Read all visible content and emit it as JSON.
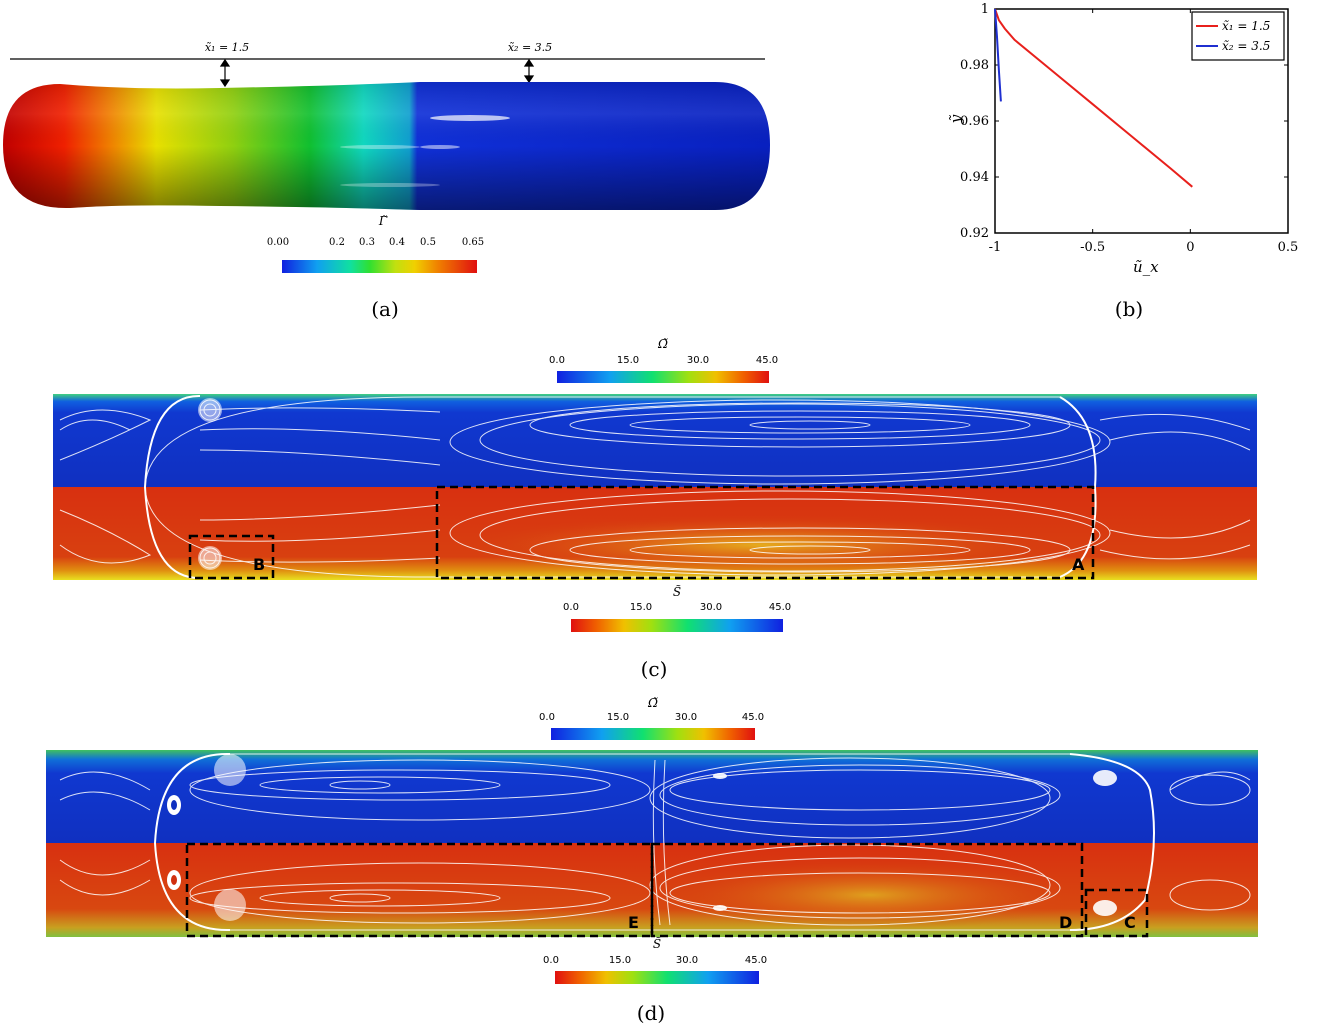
{
  "panel_a": {
    "caption": "(a)",
    "marker1_label": "x̃₁ = 1.5",
    "marker2_label": "x̃₂ = 3.5",
    "colorbar": {
      "title": "Γ̃",
      "ticks": [
        "0.00",
        "0.2",
        "0.3",
        "0.4",
        "0.5",
        "0.65"
      ]
    }
  },
  "panel_b": {
    "caption": "(b)",
    "xlabel": "ũ_x",
    "ylabel": "ỹ",
    "xticks": [
      "-1",
      "-0.5",
      "0",
      "0.5"
    ],
    "yticks": [
      "1",
      "0.98",
      "0.96",
      "0.94",
      "0.92"
    ],
    "legend": [
      "x̃₁ = 1.5",
      "x̃₂ = 3.5"
    ]
  },
  "chart_data": {
    "type": "line",
    "xlabel": "ũ_x",
    "ylabel": "ỹ",
    "xlim": [
      -1,
      0.5
    ],
    "ylim": [
      0.92,
      1.0
    ],
    "legend_position": "top-right",
    "series": [
      {
        "name": "x̃₁ = 1.5",
        "color": "#e8201c",
        "x": [
          -1.0,
          -0.98,
          -0.95,
          -0.9,
          -0.7,
          -0.5,
          -0.3,
          -0.1,
          0.01
        ],
        "y": [
          1.0,
          0.996,
          0.993,
          0.989,
          0.9775,
          0.966,
          0.9545,
          0.943,
          0.9365
        ]
      },
      {
        "name": "x̃₂ = 3.5",
        "color": "#1f2fd0",
        "x": [
          -1.0,
          -0.99,
          -0.98,
          -0.97
        ],
        "y": [
          1.0,
          0.99,
          0.978,
          0.967
        ]
      }
    ]
  },
  "panel_c": {
    "caption": "(c)",
    "colorbar_top": {
      "title": "Ω̃",
      "ticks": [
        "0.0",
        "15.0",
        "30.0",
        "45.0"
      ]
    },
    "colorbar_bottom": {
      "title": "S̃",
      "ticks": [
        "0.0",
        "15.0",
        "30.0",
        "45.0"
      ]
    },
    "box_labels": [
      "A",
      "B"
    ]
  },
  "panel_d": {
    "caption": "(d)",
    "colorbar_top": {
      "title": "Ω̃",
      "ticks": [
        "0.0",
        "15.0",
        "30.0",
        "45.0"
      ]
    },
    "colorbar_bottom": {
      "title": "S̃",
      "ticks": [
        "0.0",
        "15.0",
        "30.0",
        "45.0"
      ]
    },
    "box_labels": [
      "C",
      "D",
      "E"
    ]
  },
  "colors": {
    "rainbow": [
      "#1020e0",
      "#00a8f0",
      "#00e060",
      "#a0e020",
      "#f0e000",
      "#f07000",
      "#e01010"
    ],
    "red_field": "#d43010",
    "blue_field": "#1030c0"
  }
}
